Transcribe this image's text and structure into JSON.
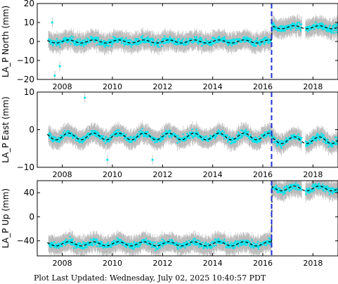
{
  "chart_data": [
    {
      "type": "scatter",
      "ylabel": "LA_P North (mm)",
      "xlim": [
        2007.0,
        2019.0
      ],
      "ylim": [
        -20,
        20
      ],
      "yticks": [
        20,
        10,
        0,
        -10,
        -20
      ],
      "xticks": [
        2008,
        2010,
        2012,
        2014,
        2016,
        2018
      ],
      "offset_date": 2016.35,
      "model": {
        "segments": [
          {
            "x_start": 2007.4,
            "x_end": 2016.35,
            "base": 0.0,
            "amplitude": 0.8
          },
          {
            "x_start": 2016.35,
            "x_end": 2019.0,
            "base": 7.5,
            "amplitude": 0.8
          }
        ]
      },
      "outliers": [
        {
          "x": 2007.6,
          "y": 10
        },
        {
          "x": 2007.9,
          "y": -13
        },
        {
          "x": 2007.7,
          "y": -18
        }
      ]
    },
    {
      "type": "scatter",
      "ylabel": "LA_P East (mm)",
      "xlim": [
        2007.0,
        2019.0
      ],
      "ylim": [
        -10,
        10
      ],
      "yticks": [
        10,
        0,
        -10
      ],
      "xticks": [
        2008,
        2010,
        2012,
        2014,
        2016,
        2018
      ],
      "offset_date": 2016.35,
      "model": {
        "segments": [
          {
            "x_start": 2007.4,
            "x_end": 2016.35,
            "base": -1.8,
            "amplitude": 0.9
          },
          {
            "x_start": 2016.35,
            "x_end": 2019.0,
            "base": -2.8,
            "amplitude": 0.9
          }
        ]
      },
      "outliers": [
        {
          "x": 2008.9,
          "y": 8.5
        },
        {
          "x": 2009.8,
          "y": -8
        },
        {
          "x": 2011.6,
          "y": -8
        }
      ]
    },
    {
      "type": "scatter",
      "ylabel": "LA_P Up (mm)",
      "xlim": [
        2007.0,
        2019.0
      ],
      "ylim": [
        -65,
        60
      ],
      "yticks": [
        40,
        0,
        -40
      ],
      "xticks": [
        2008,
        2010,
        2012,
        2014,
        2016,
        2018
      ],
      "offset_date": 2016.35,
      "model": {
        "segments": [
          {
            "x_start": 2007.4,
            "x_end": 2016.35,
            "base": -45,
            "amplitude": 3.5
          },
          {
            "x_start": 2016.35,
            "x_end": 2019.0,
            "base": 47,
            "amplitude": 4.0
          }
        ]
      },
      "outliers": []
    }
  ],
  "footer": {
    "text": "Plot Last Updated:   Wednesday, July 02, 2025 10:40:57 PDT"
  },
  "colors": {
    "points": "#00e5ee",
    "errorbars": "#b8b8b8",
    "model": "#000000",
    "offset_line": "#1f2fd6"
  }
}
